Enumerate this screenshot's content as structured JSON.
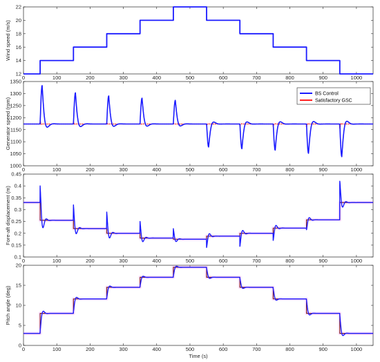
{
  "colors": {
    "bs": "#1a1aff",
    "gsc": "#ff2020",
    "ref": "#7a1e1e",
    "wind": "#1a1aff",
    "halo": "#ff66ff"
  },
  "chart_data": [
    {
      "type": "line",
      "ylabel": "Wind speed (m/s)",
      "xlim": [
        0,
        1050
      ],
      "ylim": [
        12,
        22
      ],
      "xticks": [
        0,
        100,
        200,
        300,
        400,
        500,
        600,
        700,
        800,
        900,
        1000
      ],
      "yticks": [
        12,
        14,
        16,
        18,
        20,
        22
      ],
      "series": [
        {
          "key": "wind",
          "steps": [
            [
              0,
              12
            ],
            [
              50,
              14
            ],
            [
              150,
              16
            ],
            [
              250,
              18
            ],
            [
              350,
              20
            ],
            [
              450,
              22
            ],
            [
              550,
              20
            ],
            [
              650,
              18
            ],
            [
              750,
              16
            ],
            [
              850,
              14
            ],
            [
              950,
              12
            ],
            [
              1050,
              12
            ]
          ]
        }
      ]
    },
    {
      "type": "line",
      "ylabel": "Generator speed (rpm)",
      "xlim": [
        0,
        1050
      ],
      "ylim": [
        1000,
        1350
      ],
      "xticks": [
        0,
        100,
        200,
        300,
        400,
        500,
        600,
        700,
        800,
        900,
        1000
      ],
      "yticks": [
        1000,
        1050,
        1100,
        1150,
        1200,
        1250,
        1300,
        1350
      ],
      "baseline": 1173.7,
      "legend": [
        "BS Control",
        "Satisfactory GSC"
      ],
      "bs_events": [
        [
          50,
          1333
        ],
        [
          150,
          1303
        ],
        [
          250,
          1290
        ],
        [
          350,
          1281
        ],
        [
          450,
          1272
        ],
        [
          550,
          1078
        ],
        [
          650,
          1071
        ],
        [
          750,
          1065
        ],
        [
          850,
          1052
        ],
        [
          950,
          1038
        ]
      ],
      "gsc_events": [
        [
          50,
          1188
        ],
        [
          150,
          1184
        ],
        [
          250,
          1180
        ],
        [
          350,
          1178
        ],
        [
          450,
          1177
        ],
        [
          550,
          1168
        ],
        [
          650,
          1166
        ],
        [
          750,
          1164
        ],
        [
          850,
          1160
        ],
        [
          950,
          1155
        ]
      ]
    },
    {
      "type": "line",
      "ylabel": "Fore-aft displacement (m)",
      "xlim": [
        0,
        1050
      ],
      "ylim": [
        0.1,
        0.45
      ],
      "xticks": [
        0,
        100,
        200,
        300,
        400,
        500,
        600,
        700,
        800,
        900,
        1000
      ],
      "yticks": [
        0.1,
        0.15,
        0.2,
        0.25,
        0.3,
        0.35,
        0.4,
        0.45
      ],
      "levels": [
        [
          0,
          0.33
        ],
        [
          50,
          0.255
        ],
        [
          150,
          0.22
        ],
        [
          250,
          0.2
        ],
        [
          350,
          0.18
        ],
        [
          450,
          0.175
        ],
        [
          550,
          0.188
        ],
        [
          650,
          0.2
        ],
        [
          750,
          0.222
        ],
        [
          850,
          0.257
        ],
        [
          950,
          0.33
        ],
        [
          1050,
          0.33
        ]
      ],
      "peaks": [
        [
          50,
          0.4
        ],
        [
          150,
          0.32
        ],
        [
          250,
          0.29
        ],
        [
          350,
          0.25
        ],
        [
          450,
          0.22
        ],
        [
          550,
          0.14
        ],
        [
          650,
          0.145
        ],
        [
          750,
          0.17
        ],
        [
          850,
          0.215
        ],
        [
          950,
          0.42
        ]
      ]
    },
    {
      "type": "line",
      "xlabel": "Time (s)",
      "ylabel": "Pitch angle (deg)",
      "xlim": [
        0,
        1050
      ],
      "ylim": [
        0,
        20
      ],
      "xticks": [
        0,
        100,
        200,
        300,
        400,
        500,
        600,
        700,
        800,
        900,
        1000
      ],
      "yticks": [
        0,
        5,
        10,
        15,
        20
      ],
      "levels": [
        [
          0,
          3
        ],
        [
          50,
          8
        ],
        [
          150,
          11.6
        ],
        [
          250,
          14.5
        ],
        [
          350,
          17
        ],
        [
          450,
          19.5
        ],
        [
          550,
          17
        ],
        [
          650,
          14.5
        ],
        [
          750,
          11.6
        ],
        [
          850,
          8
        ],
        [
          950,
          3
        ],
        [
          1050,
          3
        ]
      ]
    }
  ]
}
